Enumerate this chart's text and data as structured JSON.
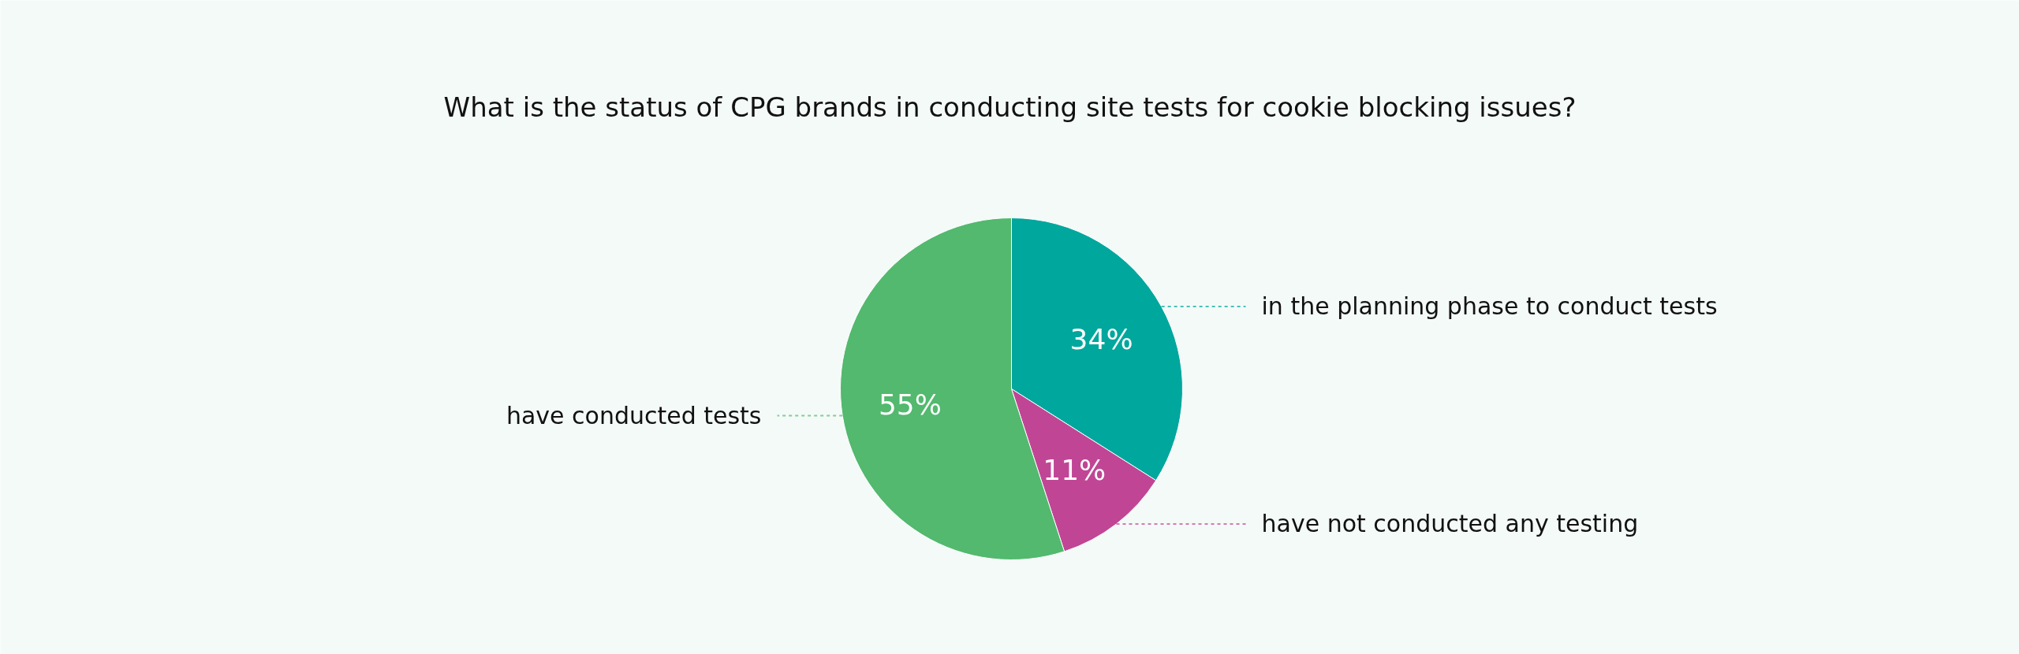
{
  "chart_data": {
    "type": "pie",
    "title": "What is the status of CPG brands in conducting site tests for cookie blocking issues?",
    "categories": [
      "in the planning phase to conduct tests",
      "have not conducted any testing",
      "have conducted tests"
    ],
    "values": [
      34,
      11,
      55
    ],
    "value_labels": [
      "34%",
      "11%",
      "55%"
    ],
    "colors": [
      "#00a79d",
      "#c04695",
      "#52b96e"
    ]
  }
}
